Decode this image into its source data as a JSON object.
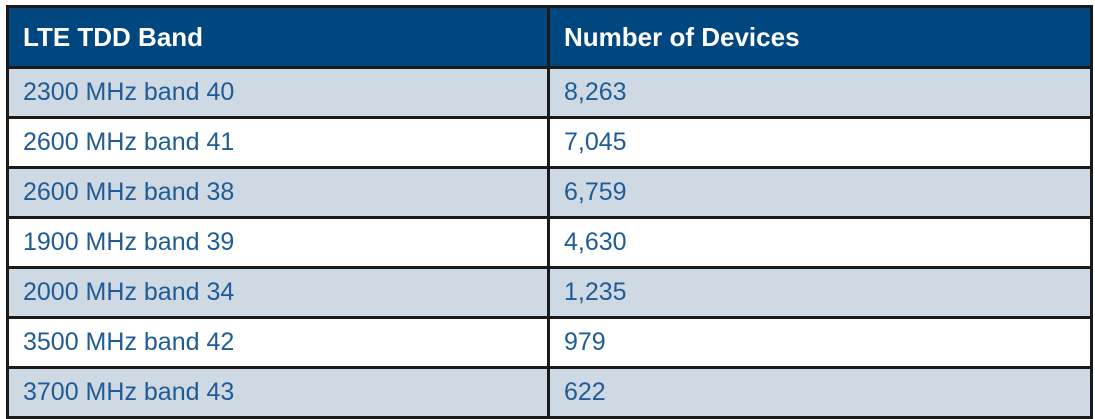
{
  "table": {
    "headers": {
      "band": "LTE TDD Band",
      "devices": "Number of Devices"
    },
    "rows": [
      {
        "band": "2300 MHz band 40",
        "devices": "8,263"
      },
      {
        "band": "2600 MHz band 41",
        "devices": "7,045"
      },
      {
        "band": "2600 MHz band 38",
        "devices": "6,759"
      },
      {
        "band": "1900 MHz band 39",
        "devices": "4,630"
      },
      {
        "band": "2000 MHz band 34",
        "devices": "1,235"
      },
      {
        "band": "3500 MHz band 42",
        "devices": "979"
      },
      {
        "band": "3700 MHz band 43",
        "devices": "622"
      }
    ]
  },
  "colors": {
    "header_background": "#00467f",
    "header_text": "#ffffff",
    "cell_text": "#1f5c97",
    "stripe_background": "#cfd9e3",
    "border": "#1a1a1a"
  }
}
